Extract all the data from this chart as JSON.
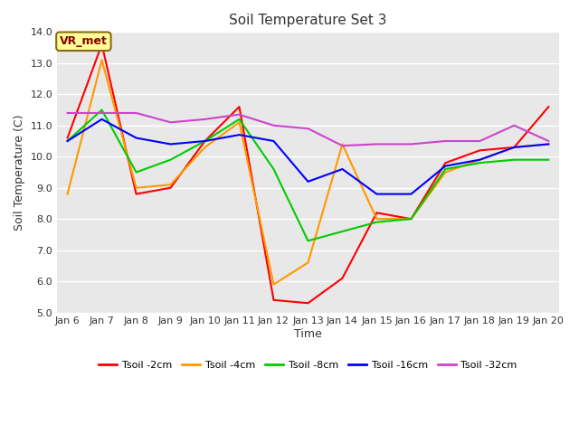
{
  "title": "Soil Temperature Set 3",
  "xlabel": "Time",
  "ylabel": "Soil Temperature (C)",
  "ylim": [
    5.0,
    14.0
  ],
  "yticks": [
    5.0,
    6.0,
    7.0,
    8.0,
    9.0,
    10.0,
    11.0,
    12.0,
    13.0,
    14.0
  ],
  "x_labels": [
    "Jan 6",
    "Jan 7",
    "Jan 8",
    "Jan 9",
    "Jan 10",
    "Jan 11",
    "Jan 12",
    "Jan 13",
    "Jan 14",
    "Jan 15",
    "Jan 16",
    "Jan 17",
    "Jan 18",
    "Jan 19",
    "Jan 20"
  ],
  "fig_bg_color": "#ffffff",
  "plot_bg_color": "#e8e8e8",
  "grid_color": "#ffffff",
  "annotation_text": "VR_met",
  "annotation_color": "#8B0000",
  "annotation_bg": "#ffff99",
  "annotation_edge": "#8B6914",
  "series": [
    {
      "label": "Tsoil -2cm",
      "color": "#ff0000",
      "data": [
        10.6,
        13.6,
        8.8,
        9.0,
        10.5,
        11.6,
        5.4,
        5.3,
        6.1,
        8.2,
        8.0,
        9.8,
        10.2,
        10.3,
        11.6
      ]
    },
    {
      "label": "Tsoil -4cm",
      "color": "#ff9900",
      "data": [
        8.8,
        13.1,
        9.0,
        9.1,
        10.3,
        11.1,
        5.9,
        6.6,
        10.4,
        8.0,
        8.0,
        9.5,
        9.9,
        10.3,
        10.4
      ]
    },
    {
      "label": "Tsoil -8cm",
      "color": "#00cc00",
      "data": [
        10.5,
        11.5,
        9.5,
        9.9,
        10.5,
        11.2,
        9.6,
        7.3,
        7.6,
        7.9,
        8.0,
        9.6,
        9.8,
        9.9,
        9.9
      ]
    },
    {
      "label": "Tsoil -16cm",
      "color": "#0000ff",
      "data": [
        10.5,
        11.2,
        10.6,
        10.4,
        10.5,
        10.7,
        10.5,
        9.2,
        9.6,
        8.8,
        8.8,
        9.7,
        9.9,
        10.3,
        10.4
      ]
    },
    {
      "label": "Tsoil -32cm",
      "color": "#cc44cc",
      "data": [
        11.4,
        11.4,
        11.4,
        11.1,
        11.2,
        11.35,
        11.0,
        10.9,
        10.35,
        10.4,
        10.4,
        10.5,
        10.5,
        11.0,
        10.5
      ]
    }
  ],
  "title_fontsize": 11,
  "axis_label_fontsize": 9,
  "tick_fontsize": 8,
  "legend_fontsize": 8,
  "linewidth": 1.5
}
